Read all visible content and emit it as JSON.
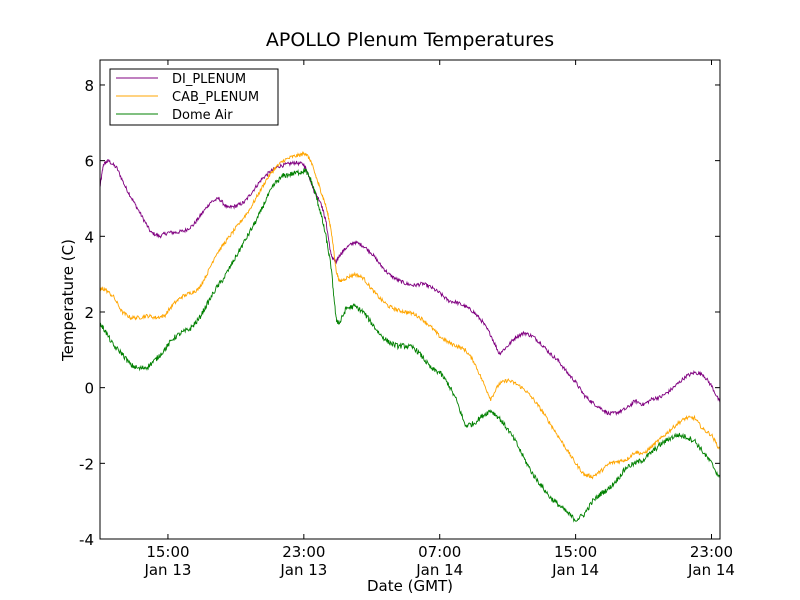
{
  "chart_data": {
    "type": "line",
    "title": "APOLLO Plenum Temperatures",
    "xlabel": "Date (GMT)",
    "ylabel": "Temperature (C)",
    "xlim": [
      11.0,
      47.5
    ],
    "ylim": [
      -4,
      8.66
    ],
    "yticks": [
      -4,
      -2,
      0,
      2,
      4,
      6,
      8
    ],
    "xticks": [
      {
        "x": 15,
        "line1": "15:00",
        "line2": "Jan 13"
      },
      {
        "x": 23,
        "line1": "23:00",
        "line2": "Jan 13"
      },
      {
        "x": 31,
        "line1": "07:00",
        "line2": "Jan 14"
      },
      {
        "x": 39,
        "line1": "15:00",
        "line2": "Jan 14"
      },
      {
        "x": 47,
        "line1": "23:00",
        "line2": "Jan 14"
      }
    ],
    "legend_position": "top-left",
    "series": [
      {
        "name": "DI_PLENUM",
        "color": "#800080",
        "noise": 0.05,
        "x": [
          11.0,
          11.2,
          11.5,
          12.0,
          12.5,
          13.0,
          13.5,
          14.0,
          14.5,
          15.0,
          15.5,
          16.0,
          16.5,
          17.0,
          17.5,
          18.0,
          18.5,
          19.0,
          19.5,
          20.0,
          20.5,
          21.0,
          21.5,
          22.0,
          22.5,
          23.0,
          23.3,
          23.6,
          24.0,
          24.3,
          24.6,
          24.9,
          25.1,
          25.5,
          26.0,
          26.5,
          27.0,
          27.5,
          28.0,
          28.5,
          29.0,
          29.5,
          30.0,
          30.5,
          31.0,
          31.5,
          32.0,
          32.5,
          33.0,
          33.5,
          34.0,
          34.5,
          35.0,
          35.5,
          36.0,
          36.5,
          37.0,
          37.5,
          38.0,
          38.5,
          39.0,
          39.5,
          40.0,
          40.5,
          41.0,
          41.5,
          42.0,
          42.5,
          43.0,
          43.5,
          44.0,
          44.5,
          45.0,
          45.5,
          46.0,
          46.5,
          47.0,
          47.5
        ],
        "values": [
          5.3,
          5.9,
          6.0,
          5.8,
          5.3,
          4.9,
          4.5,
          4.1,
          4.0,
          4.1,
          4.1,
          4.15,
          4.3,
          4.6,
          4.9,
          5.0,
          4.75,
          4.8,
          4.9,
          5.2,
          5.5,
          5.7,
          5.85,
          5.9,
          5.95,
          5.9,
          5.6,
          5.2,
          4.9,
          4.4,
          3.5,
          3.3,
          3.5,
          3.7,
          3.85,
          3.75,
          3.55,
          3.25,
          3.0,
          2.85,
          2.75,
          2.7,
          2.75,
          2.65,
          2.5,
          2.3,
          2.25,
          2.15,
          2.0,
          1.75,
          1.4,
          0.9,
          1.1,
          1.35,
          1.45,
          1.35,
          1.15,
          0.9,
          0.7,
          0.4,
          0.15,
          -0.2,
          -0.4,
          -0.55,
          -0.7,
          -0.65,
          -0.55,
          -0.35,
          -0.45,
          -0.3,
          -0.25,
          -0.1,
          0.1,
          0.3,
          0.4,
          0.35,
          0.05,
          -0.4
        ]
      },
      {
        "name": "CAB_PLENUM",
        "color": "#ffa500",
        "noise": 0.05,
        "x": [
          11.0,
          11.3,
          11.8,
          12.3,
          12.8,
          13.3,
          13.8,
          14.3,
          14.8,
          15.3,
          15.8,
          16.3,
          16.8,
          17.3,
          17.8,
          18.3,
          18.8,
          19.3,
          19.8,
          20.3,
          20.8,
          21.3,
          21.8,
          22.3,
          22.8,
          23.1,
          23.4,
          23.7,
          24.0,
          24.3,
          24.6,
          24.9,
          25.1,
          25.5,
          26.0,
          26.5,
          27.0,
          27.5,
          28.0,
          28.5,
          29.0,
          29.5,
          30.0,
          30.5,
          31.0,
          31.5,
          32.0,
          32.5,
          33.0,
          33.5,
          34.0,
          34.5,
          35.0,
          35.5,
          36.0,
          36.5,
          37.0,
          37.5,
          38.0,
          38.5,
          39.0,
          39.5,
          40.0,
          40.5,
          41.0,
          41.5,
          42.0,
          42.5,
          43.0,
          43.5,
          44.0,
          44.5,
          45.0,
          45.5,
          46.0,
          46.5,
          47.0,
          47.5
        ],
        "values": [
          2.6,
          2.6,
          2.4,
          2.0,
          1.85,
          1.85,
          1.9,
          1.85,
          1.9,
          2.2,
          2.4,
          2.5,
          2.6,
          3.0,
          3.5,
          3.8,
          4.1,
          4.4,
          4.7,
          5.1,
          5.5,
          5.8,
          6.0,
          6.1,
          6.15,
          6.2,
          6.0,
          5.6,
          5.2,
          4.8,
          4.2,
          3.1,
          2.8,
          2.9,
          3.0,
          2.9,
          2.6,
          2.35,
          2.15,
          2.05,
          2.0,
          1.95,
          1.8,
          1.6,
          1.35,
          1.2,
          1.1,
          1.0,
          0.7,
          0.2,
          -0.3,
          0.1,
          0.2,
          0.1,
          -0.05,
          -0.3,
          -0.6,
          -0.95,
          -1.3,
          -1.65,
          -2.0,
          -2.3,
          -2.35,
          -2.2,
          -2.0,
          -1.95,
          -1.9,
          -1.7,
          -1.75,
          -1.55,
          -1.35,
          -1.15,
          -0.95,
          -0.8,
          -0.8,
          -1.1,
          -1.25,
          -1.65
        ]
      },
      {
        "name": "Dome Air",
        "color": "#008000",
        "noise": 0.07,
        "x": [
          11.0,
          11.3,
          11.8,
          12.3,
          12.8,
          13.3,
          13.8,
          14.3,
          14.8,
          15.3,
          15.8,
          16.3,
          16.8,
          17.3,
          17.8,
          18.3,
          18.8,
          19.3,
          19.8,
          20.3,
          20.8,
          21.3,
          21.8,
          22.3,
          22.8,
          23.1,
          23.4,
          23.7,
          24.0,
          24.3,
          24.6,
          24.9,
          25.1,
          25.5,
          26.0,
          26.5,
          27.0,
          27.5,
          28.0,
          28.5,
          29.0,
          29.5,
          30.0,
          30.5,
          31.0,
          31.5,
          32.0,
          32.5,
          33.0,
          33.5,
          34.0,
          34.5,
          35.0,
          35.5,
          36.0,
          36.5,
          37.0,
          37.5,
          38.0,
          38.5,
          39.0,
          39.5,
          40.0,
          40.5,
          41.0,
          41.5,
          42.0,
          42.5,
          43.0,
          43.5,
          44.0,
          44.5,
          45.0,
          45.5,
          46.0,
          46.5,
          47.0,
          47.5
        ],
        "values": [
          1.7,
          1.5,
          1.1,
          0.9,
          0.6,
          0.5,
          0.55,
          0.75,
          1.0,
          1.3,
          1.45,
          1.55,
          1.8,
          2.2,
          2.6,
          2.9,
          3.3,
          3.7,
          4.1,
          4.5,
          5.0,
          5.4,
          5.6,
          5.65,
          5.7,
          5.75,
          5.5,
          5.1,
          4.6,
          4.0,
          3.2,
          1.8,
          1.7,
          2.1,
          2.15,
          2.0,
          1.7,
          1.4,
          1.2,
          1.1,
          1.1,
          1.05,
          0.8,
          0.5,
          0.4,
          0.1,
          -0.35,
          -1.0,
          -0.95,
          -0.75,
          -0.6,
          -0.8,
          -1.1,
          -1.45,
          -1.9,
          -2.3,
          -2.6,
          -2.9,
          -3.1,
          -3.3,
          -3.5,
          -3.35,
          -3.0,
          -2.8,
          -2.65,
          -2.4,
          -2.1,
          -2.0,
          -1.9,
          -1.7,
          -1.5,
          -1.35,
          -1.25,
          -1.3,
          -1.4,
          -1.7,
          -2.0,
          -2.4
        ]
      }
    ]
  }
}
